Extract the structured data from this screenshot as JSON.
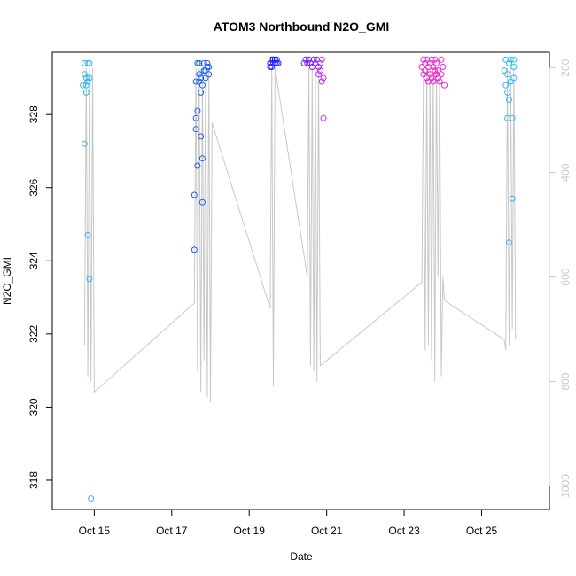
{
  "chart_data": {
    "type": "scatter",
    "title": "ATOM3 Northbound N2O_GMI",
    "xlabel": "Date",
    "ylabel": "N2O_GMI",
    "xlim": [
      "2016-10-13T22:00",
      "2016-10-26T18:00"
    ],
    "ylim": [
      317.2,
      329.7
    ],
    "y2lim": [
      1045,
      170
    ],
    "y2_reversed": true,
    "x_ticks": [
      {
        "label": "Oct 15",
        "date": "2016-10-15"
      },
      {
        "label": "Oct 17",
        "date": "2016-10-17"
      },
      {
        "label": "Oct 19",
        "date": "2016-10-19"
      },
      {
        "label": "Oct 21",
        "date": "2016-10-21"
      },
      {
        "label": "Oct 23",
        "date": "2016-10-23"
      },
      {
        "label": "Oct 25",
        "date": "2016-10-25"
      }
    ],
    "y_ticks": [
      "318",
      "320",
      "322",
      "324",
      "326",
      "328"
    ],
    "y2_ticks": [
      "200",
      "400",
      "600",
      "800",
      "1000"
    ],
    "grid": false,
    "legend": "none",
    "colors": {
      "altitude_line": "#c8c8c8",
      "right_axis": "#c8c8c8",
      "flight_points": [
        "#33b5f0",
        "#1f5ee6",
        "#2121ff",
        "#7b1ff5",
        "#c42ff0",
        "#f025d0"
      ]
    },
    "altitude_trace": [
      [
        "2016-10-14T18:00",
        730
      ],
      [
        "2016-10-14T19:00",
        200
      ],
      [
        "2016-10-14T20:00",
        790
      ],
      [
        "2016-10-14T21:00",
        200
      ],
      [
        "2016-10-14T22:00",
        800
      ],
      [
        "2016-10-14T23:00",
        200
      ],
      [
        "2016-10-15T00:00",
        820
      ],
      [
        "2016-10-17T14:00",
        650
      ],
      [
        "2016-10-17T15:00",
        200
      ],
      [
        "2016-10-17T16:00",
        780
      ],
      [
        "2016-10-17T17:00",
        200
      ],
      [
        "2016-10-17T18:00",
        820
      ],
      [
        "2016-10-17T19:00",
        200
      ],
      [
        "2016-10-17T20:00",
        760
      ],
      [
        "2016-10-17T21:00",
        200
      ],
      [
        "2016-10-17T22:00",
        830
      ],
      [
        "2016-10-17T23:00",
        200
      ],
      [
        "2016-10-18T00:00",
        840
      ],
      [
        "2016-10-18T01:00",
        305
      ],
      [
        "2016-10-19T13:00",
        660
      ],
      [
        "2016-10-19T14:00",
        200
      ],
      [
        "2016-10-19T15:00",
        810
      ],
      [
        "2016-10-19T16:00",
        200
      ],
      [
        "2016-10-20T12:00",
        600
      ],
      [
        "2016-10-20T13:00",
        200
      ],
      [
        "2016-10-20T14:00",
        770
      ],
      [
        "2016-10-20T15:00",
        200
      ],
      [
        "2016-10-20T16:00",
        780
      ],
      [
        "2016-10-20T17:00",
        200
      ],
      [
        "2016-10-20T18:00",
        800
      ],
      [
        "2016-10-20T19:00",
        200
      ],
      [
        "2016-10-20T20:00",
        770
      ],
      [
        "2016-10-23T11:00",
        610
      ],
      [
        "2016-10-23T12:00",
        200
      ],
      [
        "2016-10-23T13:00",
        740
      ],
      [
        "2016-10-23T14:00",
        200
      ],
      [
        "2016-10-23T15:00",
        730
      ],
      [
        "2016-10-23T16:00",
        200
      ],
      [
        "2016-10-23T17:00",
        760
      ],
      [
        "2016-10-23T18:00",
        200
      ],
      [
        "2016-10-23T19:00",
        800
      ],
      [
        "2016-10-23T20:00",
        200
      ],
      [
        "2016-10-23T21:00",
        600
      ],
      [
        "2016-10-23T22:00",
        200
      ],
      [
        "2016-10-23T23:00",
        790
      ],
      [
        "2016-10-24T00:00",
        600
      ],
      [
        "2016-10-24T01:00",
        645
      ],
      [
        "2016-10-25T14:00",
        720
      ],
      [
        "2016-10-25T15:00",
        740
      ],
      [
        "2016-10-25T16:00",
        200
      ],
      [
        "2016-10-25T17:00",
        730
      ],
      [
        "2016-10-25T18:00",
        200
      ],
      [
        "2016-10-25T19:00",
        700
      ],
      [
        "2016-10-25T20:00",
        200
      ],
      [
        "2016-10-25T21:00",
        720
      ]
    ],
    "series": [
      {
        "values": [
          [
            "2016-10-14T17:00",
            328.8
          ],
          [
            "2016-10-14T18:00",
            329.4
          ],
          [
            "2016-10-14T18:00",
            329.1
          ],
          [
            "2016-10-14T19:00",
            328.8
          ],
          [
            "2016-10-14T19:00",
            329.0
          ],
          [
            "2016-10-14T20:00",
            329.4
          ],
          [
            "2016-10-14T20:00",
            328.9
          ],
          [
            "2016-10-14T21:00",
            329.4
          ],
          [
            "2016-10-14T21:00",
            329.0
          ],
          [
            "2016-10-14T18:00",
            327.2
          ],
          [
            "2016-10-14T19:00",
            328.6
          ],
          [
            "2016-10-14T20:00",
            324.7
          ],
          [
            "2016-10-14T21:00",
            323.5
          ],
          [
            "2016-10-14T22:00",
            317.5
          ]
        ]
      },
      {
        "values": [
          [
            "2016-10-17T14:00",
            325.8
          ],
          [
            "2016-10-17T14:00",
            324.3
          ],
          [
            "2016-10-17T15:00",
            327.6
          ],
          [
            "2016-10-17T15:00",
            327.9
          ],
          [
            "2016-10-17T15:00",
            328.9
          ],
          [
            "2016-10-17T16:00",
            328.1
          ],
          [
            "2016-10-17T16:00",
            326.6
          ],
          [
            "2016-10-17T16:00",
            329.4
          ],
          [
            "2016-10-17T17:00",
            328.9
          ],
          [
            "2016-10-17T17:00",
            329.1
          ],
          [
            "2016-10-17T17:00",
            329.4
          ],
          [
            "2016-10-17T18:00",
            329.0
          ],
          [
            "2016-10-17T18:00",
            328.6
          ],
          [
            "2016-10-17T18:00",
            327.4
          ],
          [
            "2016-10-17T19:00",
            326.8
          ],
          [
            "2016-10-17T19:00",
            325.6
          ],
          [
            "2016-10-17T19:00",
            328.8
          ],
          [
            "2016-10-17T20:00",
            329.4
          ],
          [
            "2016-10-17T20:00",
            329.2
          ],
          [
            "2016-10-17T21:00",
            329.0
          ],
          [
            "2016-10-17T21:00",
            329.2
          ],
          [
            "2016-10-17T22:00",
            329.3
          ],
          [
            "2016-10-17T22:00",
            329.4
          ],
          [
            "2016-10-17T23:00",
            329.3
          ],
          [
            "2016-10-17T23:00",
            329.1
          ]
        ]
      },
      {
        "values": [
          [
            "2016-10-19T13:00",
            329.3
          ],
          [
            "2016-10-19T13:00",
            329.4
          ],
          [
            "2016-10-19T14:00",
            329.5
          ],
          [
            "2016-10-19T14:00",
            329.3
          ],
          [
            "2016-10-19T15:00",
            329.4
          ],
          [
            "2016-10-19T15:00",
            329.5
          ],
          [
            "2016-10-19T16:00",
            329.4
          ],
          [
            "2016-10-19T16:00",
            329.5
          ],
          [
            "2016-10-19T17:00",
            329.4
          ],
          [
            "2016-10-19T17:00",
            329.5
          ],
          [
            "2016-10-19T18:00",
            329.4
          ]
        ]
      },
      {
        "values": [
          [
            "2016-10-20T10:00",
            329.4
          ],
          [
            "2016-10-20T11:00",
            329.5
          ],
          [
            "2016-10-20T12:00",
            329.4
          ],
          [
            "2016-10-20T13:00",
            329.5
          ],
          [
            "2016-10-20T14:00",
            329.4
          ],
          [
            "2016-10-20T15:00",
            329.3
          ],
          [
            "2016-10-20T16:00",
            329.5
          ],
          [
            "2016-10-20T17:00",
            329.4
          ],
          [
            "2016-10-20T18:00",
            329.5
          ],
          [
            "2016-10-20T19:00",
            329.3
          ]
        ]
      },
      {
        "values": [
          [
            "2016-10-20T19:00",
            329.1
          ],
          [
            "2016-10-20T20:00",
            329.4
          ],
          [
            "2016-10-20T20:00",
            329.2
          ],
          [
            "2016-10-20T21:00",
            329.5
          ],
          [
            "2016-10-20T21:00",
            328.9
          ],
          [
            "2016-10-20T22:00",
            329.0
          ],
          [
            "2016-10-20T22:00",
            327.9
          ]
        ]
      },
      {
        "values": [
          [
            "2016-10-23T11:00",
            329.3
          ],
          [
            "2016-10-23T12:00",
            329.5
          ],
          [
            "2016-10-23T12:00",
            329.1
          ],
          [
            "2016-10-23T13:00",
            329.4
          ],
          [
            "2016-10-23T13:00",
            329.2
          ],
          [
            "2016-10-23T14:00",
            329.0
          ],
          [
            "2016-10-23T14:00",
            329.5
          ],
          [
            "2016-10-23T15:00",
            329.3
          ],
          [
            "2016-10-23T15:00",
            328.9
          ],
          [
            "2016-10-23T16:00",
            329.4
          ],
          [
            "2016-10-23T16:00",
            329.1
          ],
          [
            "2016-10-23T17:00",
            329.5
          ],
          [
            "2016-10-23T17:00",
            329.0
          ],
          [
            "2016-10-23T18:00",
            329.3
          ],
          [
            "2016-10-23T18:00",
            328.9
          ],
          [
            "2016-10-23T19:00",
            329.2
          ],
          [
            "2016-10-23T19:00",
            329.5
          ],
          [
            "2016-10-23T20:00",
            329.1
          ],
          [
            "2016-10-23T20:00",
            329.4
          ],
          [
            "2016-10-23T21:00",
            329.0
          ],
          [
            "2016-10-23T21:00",
            329.2
          ],
          [
            "2016-10-23T22:00",
            328.9
          ],
          [
            "2016-10-23T23:00",
            329.5
          ],
          [
            "2016-10-23T23:00",
            329.1
          ],
          [
            "2016-10-24T00:00",
            329.3
          ],
          [
            "2016-10-24T01:00",
            328.8
          ]
        ]
      },
      {
        "values": [
          [
            "2016-10-25T14:00",
            329.2
          ],
          [
            "2016-10-25T15:00",
            329.5
          ],
          [
            "2016-10-25T15:00",
            328.8
          ],
          [
            "2016-10-25T16:00",
            329.1
          ],
          [
            "2016-10-25T16:00",
            328.6
          ],
          [
            "2016-10-25T16:00",
            327.9
          ],
          [
            "2016-10-25T17:00",
            329.4
          ],
          [
            "2016-10-25T17:00",
            328.4
          ],
          [
            "2016-10-25T17:00",
            324.5
          ],
          [
            "2016-10-25T18:00",
            329.5
          ],
          [
            "2016-10-25T18:00",
            328.9
          ],
          [
            "2016-10-25T19:00",
            325.7
          ],
          [
            "2016-10-25T19:00",
            327.9
          ],
          [
            "2016-10-25T20:00",
            329.5
          ],
          [
            "2016-10-25T20:00",
            329.0
          ],
          [
            "2016-10-25T20:00",
            329.3
          ]
        ]
      }
    ]
  }
}
